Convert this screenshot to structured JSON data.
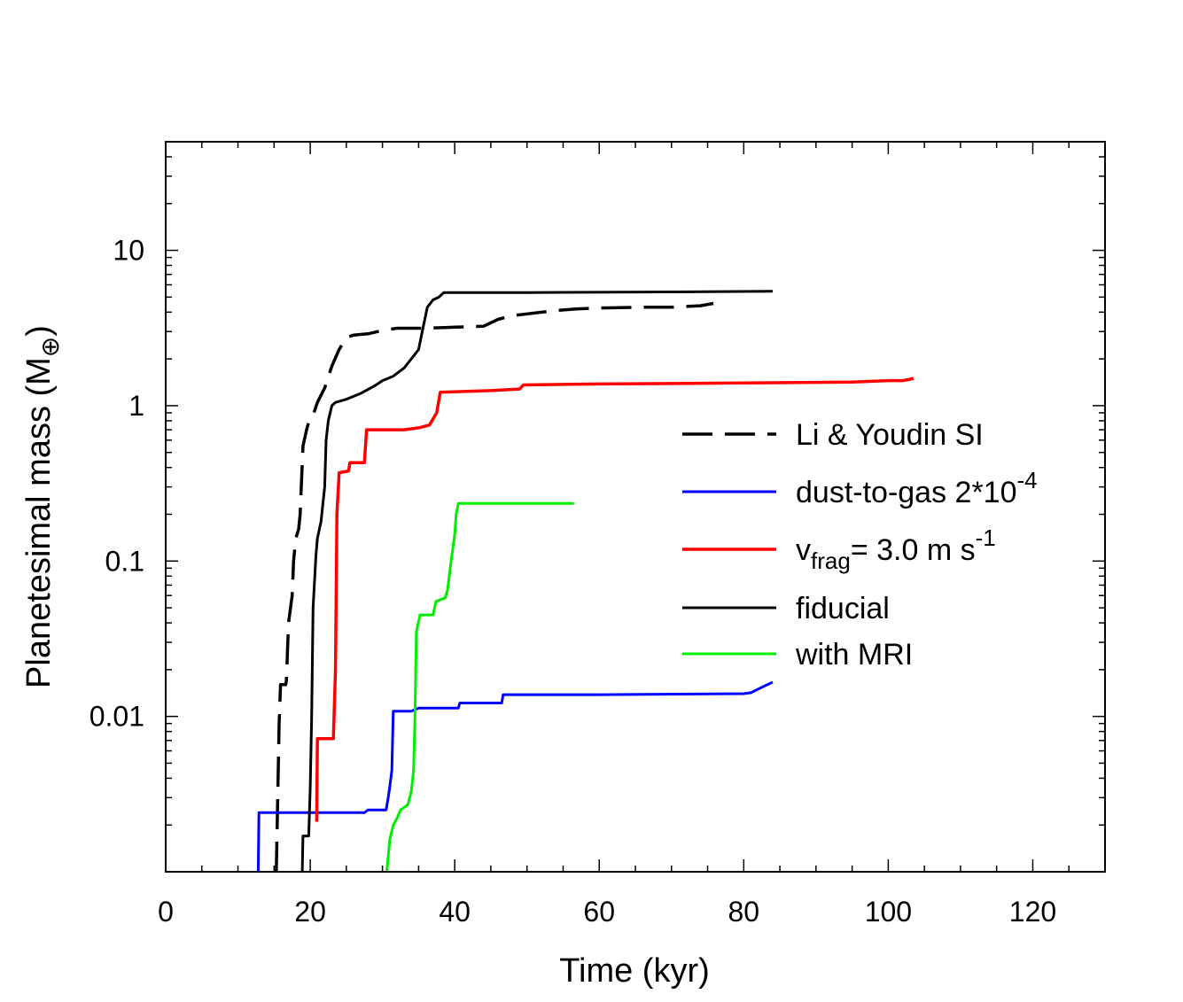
{
  "chart_data": {
    "type": "line",
    "title": "",
    "xlabel": "Time (kyr)",
    "ylabel": "Planetesimal mass (M",
    "ylabel_symbol": "⊕",
    "ylabel_close": ")",
    "x_scale": "linear",
    "y_scale": "log",
    "xlim": [
      0,
      130
    ],
    "ylim": [
      0.001,
      50
    ],
    "x_ticks": [
      0,
      20,
      40,
      60,
      80,
      100,
      120
    ],
    "x_tick_labels": [
      "0",
      "20",
      "40",
      "60",
      "80",
      "100",
      "120"
    ],
    "y_ticks": [
      0.01,
      0.1,
      1,
      10
    ],
    "y_tick_labels": [
      "0.01",
      "0.1",
      "1",
      "10"
    ],
    "legend_position": "center-right",
    "series": [
      {
        "name": "Li & Youdin SI",
        "legend": {
          "text": "Li & Youdin SI"
        },
        "color": "#000000",
        "dash": "dashed",
        "width": 3.5,
        "points": [
          [
            15.3,
            0.001
          ],
          [
            15.5,
            0.003
          ],
          [
            15.7,
            0.009
          ],
          [
            15.9,
            0.016
          ],
          [
            16.6,
            0.016
          ],
          [
            16.7,
            0.017
          ],
          [
            17.0,
            0.04
          ],
          [
            17.5,
            0.06
          ],
          [
            17.7,
            0.1
          ],
          [
            18.0,
            0.14
          ],
          [
            18.4,
            0.16
          ],
          [
            18.6,
            0.2
          ],
          [
            19.0,
            0.55
          ],
          [
            19.5,
            0.7
          ],
          [
            19.9,
            0.82
          ],
          [
            20.5,
            0.9
          ],
          [
            21.0,
            1.05
          ],
          [
            22.0,
            1.3
          ],
          [
            23.0,
            1.8
          ],
          [
            24.0,
            2.3
          ],
          [
            25.0,
            2.75
          ],
          [
            26.0,
            2.85
          ],
          [
            28.0,
            2.9
          ],
          [
            30.0,
            3.05
          ],
          [
            32.0,
            3.15
          ],
          [
            36.0,
            3.15
          ],
          [
            40.0,
            3.2
          ],
          [
            44.0,
            3.25
          ],
          [
            46.0,
            3.6
          ],
          [
            48.0,
            3.8
          ],
          [
            50.0,
            3.9
          ],
          [
            54.0,
            4.1
          ],
          [
            57.0,
            4.2
          ],
          [
            60.0,
            4.25
          ],
          [
            66.0,
            4.3
          ],
          [
            70.0,
            4.3
          ],
          [
            74.0,
            4.4
          ],
          [
            75.8,
            4.55
          ]
        ]
      },
      {
        "name": "dust-to-gas",
        "legend": {
          "text": "dust-to-gas 2*10",
          "sup": "-4"
        },
        "color": "#0000ff",
        "dash": "solid",
        "width": 3,
        "points": [
          [
            12.8,
            0.001
          ],
          [
            12.9,
            0.0024
          ],
          [
            27.5,
            0.0024
          ],
          [
            28.0,
            0.0025
          ],
          [
            30.5,
            0.0025
          ],
          [
            30.8,
            0.003
          ],
          [
            31.0,
            0.0035
          ],
          [
            31.3,
            0.0045
          ],
          [
            31.5,
            0.0108
          ],
          [
            34.0,
            0.0108
          ],
          [
            35.0,
            0.0113
          ],
          [
            40.5,
            0.0113
          ],
          [
            40.7,
            0.0122
          ],
          [
            46.5,
            0.0122
          ],
          [
            46.7,
            0.0138
          ],
          [
            60.0,
            0.0138
          ],
          [
            80.0,
            0.014
          ],
          [
            81.0,
            0.0142
          ],
          [
            82.0,
            0.015
          ],
          [
            83.0,
            0.0158
          ],
          [
            84.0,
            0.0166
          ]
        ]
      },
      {
        "name": "vfrag",
        "legend": {
          "text": "v",
          "sub": "frag",
          "text2": "= 3.0 m s",
          "sup": "-1"
        },
        "color": "#ff0000",
        "dash": "solid",
        "width": 3.5,
        "points": [
          [
            20.9,
            0.0021
          ],
          [
            21.0,
            0.0072
          ],
          [
            23.2,
            0.0072
          ],
          [
            23.5,
            0.02
          ],
          [
            23.7,
            0.2
          ],
          [
            24.0,
            0.37
          ],
          [
            25.3,
            0.38
          ],
          [
            25.5,
            0.43
          ],
          [
            27.5,
            0.43
          ],
          [
            27.8,
            0.7
          ],
          [
            33.0,
            0.7
          ],
          [
            35.0,
            0.72
          ],
          [
            36.5,
            0.75
          ],
          [
            37.5,
            0.9
          ],
          [
            38.0,
            1.22
          ],
          [
            45.0,
            1.25
          ],
          [
            49.0,
            1.28
          ],
          [
            49.5,
            1.36
          ],
          [
            60.0,
            1.38
          ],
          [
            80.0,
            1.4
          ],
          [
            95.0,
            1.42
          ],
          [
            100.0,
            1.45
          ],
          [
            102.0,
            1.45
          ],
          [
            103.0,
            1.48
          ],
          [
            103.5,
            1.5
          ]
        ]
      },
      {
        "name": "fiducial",
        "legend": {
          "text": "fiducial"
        },
        "color": "#000000",
        "dash": "solid",
        "width": 3,
        "points": [
          [
            18.9,
            0.001
          ],
          [
            19.0,
            0.0017
          ],
          [
            19.8,
            0.0017
          ],
          [
            20.0,
            0.0035
          ],
          [
            20.2,
            0.01
          ],
          [
            20.4,
            0.05
          ],
          [
            20.8,
            0.11
          ],
          [
            21.0,
            0.14
          ],
          [
            21.5,
            0.18
          ],
          [
            22.0,
            0.3
          ],
          [
            22.2,
            0.6
          ],
          [
            22.5,
            0.8
          ],
          [
            23.0,
            1.0
          ],
          [
            23.5,
            1.05
          ],
          [
            25.0,
            1.1
          ],
          [
            27.0,
            1.2
          ],
          [
            29.0,
            1.35
          ],
          [
            30.0,
            1.45
          ],
          [
            31.5,
            1.55
          ],
          [
            33.0,
            1.75
          ],
          [
            34.0,
            2.0
          ],
          [
            35.0,
            2.3
          ],
          [
            35.5,
            3.0
          ],
          [
            36.2,
            4.3
          ],
          [
            37.0,
            4.8
          ],
          [
            37.8,
            5.0
          ],
          [
            38.5,
            5.35
          ],
          [
            50.0,
            5.35
          ],
          [
            70.0,
            5.4
          ],
          [
            84.0,
            5.45
          ]
        ]
      },
      {
        "name": "with MRI",
        "legend": {
          "text": "with MRI"
        },
        "color": "#00ee00",
        "dash": "solid",
        "width": 3,
        "points": [
          [
            30.6,
            0.001
          ],
          [
            31.0,
            0.0016
          ],
          [
            31.5,
            0.002
          ],
          [
            32.0,
            0.0022
          ],
          [
            32.5,
            0.0025
          ],
          [
            33.5,
            0.0027
          ],
          [
            34.0,
            0.0033
          ],
          [
            34.3,
            0.0045
          ],
          [
            34.5,
            0.01
          ],
          [
            34.7,
            0.035
          ],
          [
            35.2,
            0.045
          ],
          [
            37.0,
            0.045
          ],
          [
            37.4,
            0.055
          ],
          [
            38.7,
            0.058
          ],
          [
            39.0,
            0.065
          ],
          [
            39.5,
            0.1
          ],
          [
            40.0,
            0.15
          ],
          [
            40.2,
            0.2
          ],
          [
            40.5,
            0.235
          ],
          [
            56.5,
            0.235
          ]
        ]
      }
    ]
  }
}
